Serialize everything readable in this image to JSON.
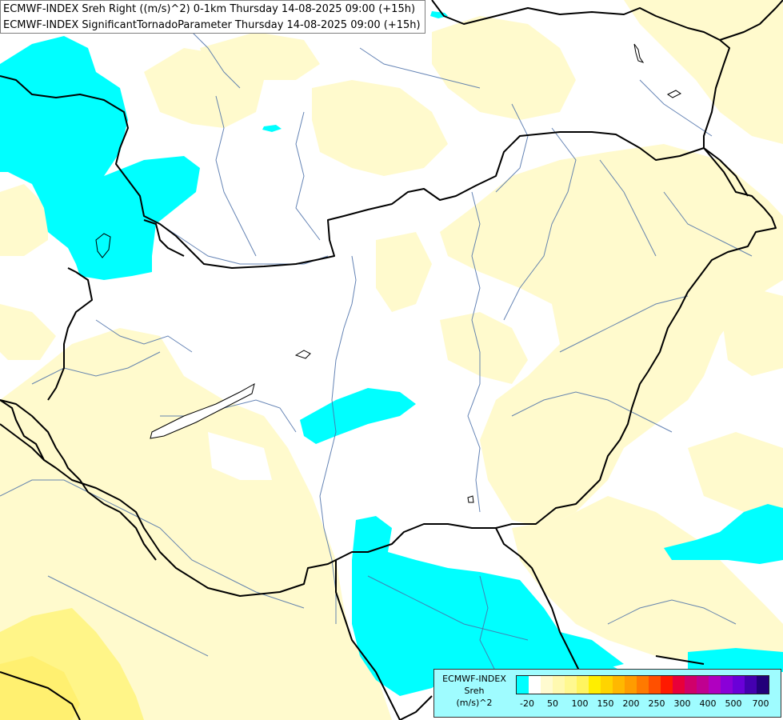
{
  "header": {
    "line1": "ECMWF-INDEX Sreh Right ((m/s)^2) 0-1km Thursday 14-08-2025 09:00 (+15h)",
    "line2": "ECMWF-INDEX SignificantTornadoParameter Thursday 14-08-2025 09:00 (+15h)"
  },
  "legend": {
    "title1": "ECMWF-INDEX",
    "title2": "Sreh",
    "units": "(m/s)^2",
    "colors": [
      "#00ffff",
      "#ffffff",
      "#fffbd0",
      "#fff9b0",
      "#fff890",
      "#fff460",
      "#ffee00",
      "#ffd400",
      "#ffb800",
      "#ff9c00",
      "#ff7a00",
      "#ff5000",
      "#ff1a00",
      "#e8003a",
      "#d0006a",
      "#c00090",
      "#b000c0",
      "#8a00d8",
      "#6a00d8",
      "#4400b0",
      "#22007a"
    ],
    "tick_labels": [
      "-20",
      "50",
      "100",
      "150",
      "200",
      "250",
      "300",
      "400",
      "500",
      "700"
    ]
  },
  "colors": {
    "cyan": "#00ffff",
    "light_yellow": "#fffacd",
    "yellow": "#fff588",
    "border": "#000000",
    "river": "#4a6ea8"
  }
}
